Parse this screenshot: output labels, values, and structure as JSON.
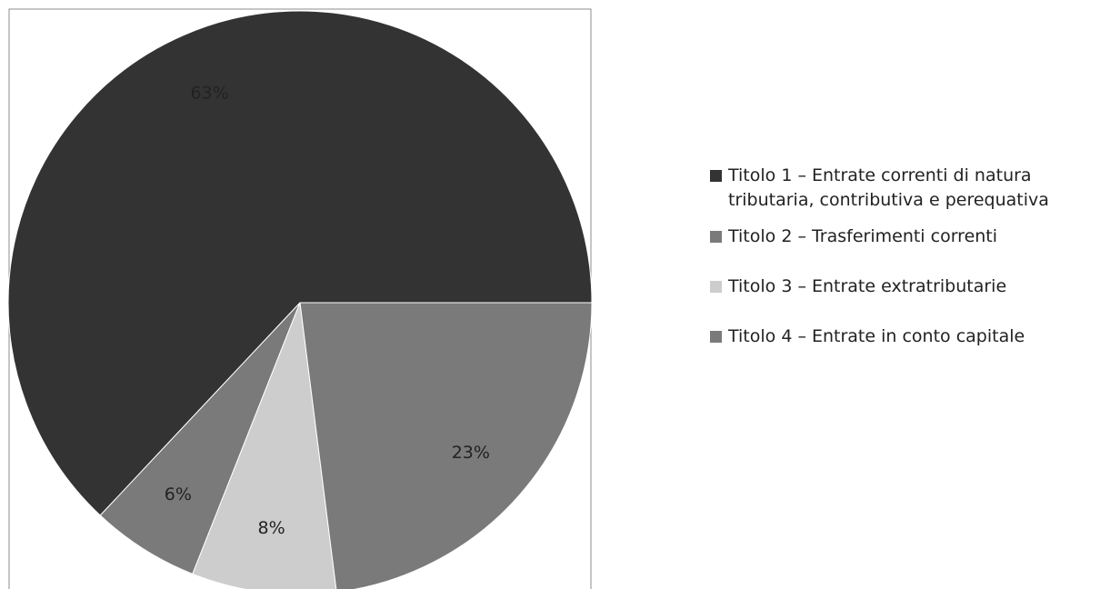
{
  "chart_data": {
    "type": "pie",
    "title": "",
    "start_angle_deg": 0,
    "direction": "counterclockwise",
    "slices": [
      {
        "label": "Titolo 1 – Entrate correnti di natura tributaria, contributiva e perequativa",
        "value": 63,
        "value_label": "63%",
        "color": "#333333"
      },
      {
        "label": "Titolo 4 – Entrate in conto capitale",
        "value": 6,
        "value_label": "6%",
        "color": "#7a7a7a"
      },
      {
        "label": "Titolo 3 – Entrate extratributarie",
        "value": 8,
        "value_label": "8%",
        "color": "#cdcdcd"
      },
      {
        "label": "Titolo 2 – Trasferimenti correnti",
        "value": 23,
        "value_label": "23%",
        "color": "#7a7a7a"
      }
    ],
    "legend": {
      "position": "right",
      "entries": [
        {
          "label": "Titolo 1 – Entrate correnti di natura tributaria, contributiva e perequativa",
          "color": "#333333"
        },
        {
          "label": "Titolo 2 – Trasferimenti correnti",
          "color": "#7a7a7a"
        },
        {
          "label": "Titolo 3 – Entrate extratributarie",
          "color": "#cdcdcd"
        },
        {
          "label": "Titolo 4 – Entrate in conto capitale",
          "color": "#7a7a7a"
        }
      ]
    }
  }
}
